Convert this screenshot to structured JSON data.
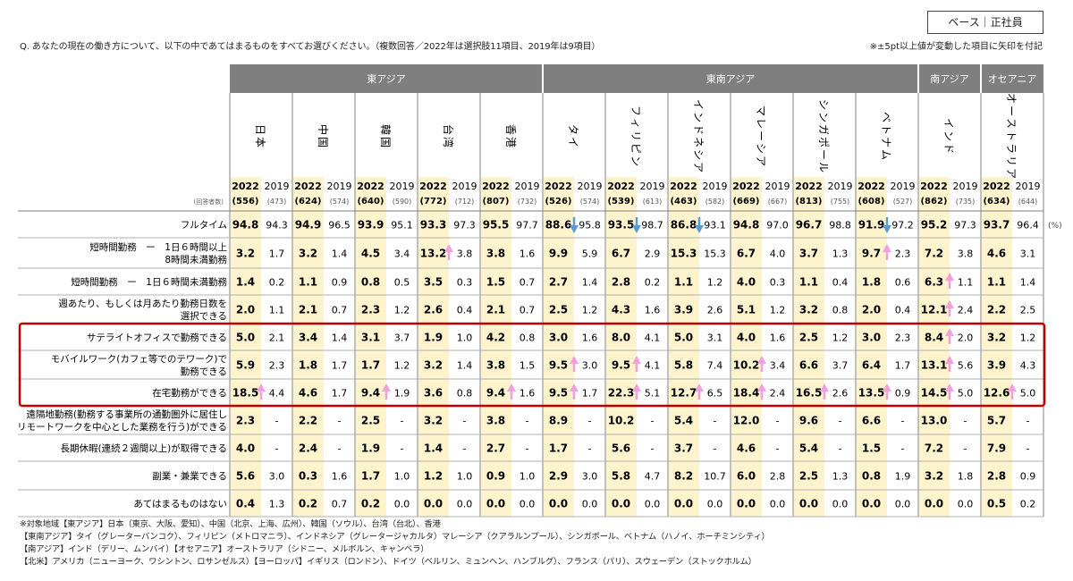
{
  "base_label": "ベース｜正社員",
  "question": "Q. あなたの現在の働き方について、以下の中であてはまるものをすべてお選びください。（複数回答／2022年は選択肢11項目、2019年は9項目）",
  "note": "※±5pt以上値が変動した項目に矢印を付記",
  "respondents_label": "(回答者数)",
  "unit_label": "(%)",
  "footnotes": [
    "※対象地域【東アジア】日本（東京、大阪、愛知）、中国（北京、上海、広州）、韓国（ソウル）、台湾（台北）、香港",
    "【東南アジア】タイ（グレーターバンコク）、フィリピン（メトロマニラ）、インドネシア（グレータージャカルタ）マレーシア（クアラルンプール）、シンガポール、ベトナム（ハノイ、ホーチミンシティ）",
    "【南アジア】インド（デリー、ムンバイ）【オセアニア】オーストラリア（シドニー、メルボルン、キャンベラ）",
    "【北米】アメリカ（ニューヨーク、ワシントン、ロサンゼルス）【ヨーロッパ】イギリス（ロンドン）、ドイツ（ベルリン、ミュンヘン、ハンブルグ）、フランス（パリ）、スウェーデン（ストックホルム）"
  ],
  "chart_data": {
    "type": "table",
    "colors": {
      "header_bg": "#7f7f7f",
      "header_text": "#ffffff",
      "highlight_2022": "#fdf3cc",
      "arrow_up": "#f0a0e0",
      "arrow_down": "#5b9bd5",
      "box": "#c00000"
    },
    "regions": [
      {
        "name": "東アジア",
        "countries": 5
      },
      {
        "name": "東南アジア",
        "countries": 6
      },
      {
        "name": "南アジア",
        "countries": 1
      },
      {
        "name": "オセアニア",
        "countries": 1
      }
    ],
    "years": [
      "2022",
      "2019"
    ],
    "countries": [
      {
        "name": "日本",
        "n2022": "(556)",
        "n2019": "(473)"
      },
      {
        "name": "中国",
        "n2022": "(624)",
        "n2019": "(574)"
      },
      {
        "name": "韓国",
        "n2022": "(640)",
        "n2019": "(590)"
      },
      {
        "name": "台湾",
        "n2022": "(772)",
        "n2019": "(712)"
      },
      {
        "name": "香港",
        "n2022": "(807)",
        "n2019": "(732)"
      },
      {
        "name": "タイ",
        "n2022": "(526)",
        "n2019": "(574)"
      },
      {
        "name": "フィリピン",
        "n2022": "(539)",
        "n2019": "(613)"
      },
      {
        "name": "インドネシア",
        "n2022": "(463)",
        "n2019": "(582)"
      },
      {
        "name": "マレーシア",
        "n2022": "(669)",
        "n2019": "(667)"
      },
      {
        "name": "シンガポール",
        "n2022": "(813)",
        "n2019": "(755)"
      },
      {
        "name": "ベトナム",
        "n2022": "(608)",
        "n2019": "(527)"
      },
      {
        "name": "インド",
        "n2022": "(862)",
        "n2019": "(735)"
      },
      {
        "name": "オーストラリア",
        "n2022": "(634)",
        "n2019": "(644)"
      }
    ],
    "rows": [
      {
        "label": [
          "フルタイム"
        ],
        "highlighted": false,
        "values": [
          [
            "94.8",
            "94.3"
          ],
          [
            "94.9",
            "96.5"
          ],
          [
            "93.9",
            "95.1"
          ],
          [
            "93.3",
            "97.3"
          ],
          [
            "95.5",
            "97.7"
          ],
          [
            "88.6",
            "95.8"
          ],
          [
            "93.5",
            "98.7"
          ],
          [
            "86.8",
            "93.1"
          ],
          [
            "94.8",
            "97.0"
          ],
          [
            "96.7",
            "98.8"
          ],
          [
            "91.9",
            "97.2"
          ],
          [
            "95.2",
            "97.3"
          ],
          [
            "93.7",
            "96.4"
          ]
        ],
        "arrows": [
          null,
          null,
          null,
          null,
          null,
          "down",
          "down",
          "down",
          null,
          null,
          "down",
          null,
          null
        ]
      },
      {
        "label": [
          "短時間勤務　ー　1日６時間以上",
          "8時間未満勤務"
        ],
        "highlighted": false,
        "values": [
          [
            "3.2",
            "1.7"
          ],
          [
            "3.2",
            "1.4"
          ],
          [
            "4.5",
            "3.4"
          ],
          [
            "13.2",
            "3.8"
          ],
          [
            "3.8",
            "1.6"
          ],
          [
            "9.9",
            "5.9"
          ],
          [
            "6.7",
            "2.9"
          ],
          [
            "15.3",
            "15.3"
          ],
          [
            "6.7",
            "4.0"
          ],
          [
            "3.7",
            "1.3"
          ],
          [
            "9.7",
            "2.3"
          ],
          [
            "7.2",
            "3.8"
          ],
          [
            "4.6",
            "3.1"
          ]
        ],
        "arrows": [
          null,
          null,
          null,
          "up",
          null,
          null,
          null,
          null,
          null,
          null,
          "up",
          null,
          null
        ]
      },
      {
        "label": [
          "短時間勤務　ー　1日６時間未満勤務"
        ],
        "highlighted": false,
        "values": [
          [
            "1.4",
            "0.2"
          ],
          [
            "1.1",
            "0.9"
          ],
          [
            "0.8",
            "0.5"
          ],
          [
            "3.5",
            "0.3"
          ],
          [
            "1.5",
            "0.7"
          ],
          [
            "2.7",
            "1.4"
          ],
          [
            "2.8",
            "0.2"
          ],
          [
            "1.1",
            "1.2"
          ],
          [
            "4.0",
            "0.3"
          ],
          [
            "1.1",
            "0.4"
          ],
          [
            "1.8",
            "0.6"
          ],
          [
            "6.3",
            "1.1"
          ],
          [
            "1.1",
            "1.4"
          ]
        ],
        "arrows": [
          null,
          null,
          null,
          null,
          null,
          null,
          null,
          null,
          null,
          null,
          null,
          "up",
          null
        ]
      },
      {
        "label": [
          "週あたり、もしくは月あたり勤務日数を",
          "選択できる"
        ],
        "highlighted": false,
        "values": [
          [
            "2.0",
            "1.1"
          ],
          [
            "2.1",
            "0.7"
          ],
          [
            "2.3",
            "1.2"
          ],
          [
            "2.6",
            "0.4"
          ],
          [
            "2.1",
            "0.7"
          ],
          [
            "2.5",
            "1.2"
          ],
          [
            "4.3",
            "1.6"
          ],
          [
            "3.9",
            "2.6"
          ],
          [
            "5.1",
            "1.2"
          ],
          [
            "3.2",
            "0.8"
          ],
          [
            "2.0",
            "0.4"
          ],
          [
            "12.1",
            "2.4"
          ],
          [
            "2.2",
            "2.5"
          ]
        ],
        "arrows": [
          null,
          null,
          null,
          null,
          null,
          null,
          null,
          null,
          null,
          null,
          null,
          "up",
          null
        ]
      },
      {
        "label": [
          "サテライトオフィスで勤務できる"
        ],
        "highlighted": true,
        "values": [
          [
            "5.0",
            "2.1"
          ],
          [
            "3.4",
            "1.4"
          ],
          [
            "3.1",
            "3.7"
          ],
          [
            "1.9",
            "1.0"
          ],
          [
            "4.2",
            "0.8"
          ],
          [
            "3.0",
            "1.6"
          ],
          [
            "8.0",
            "4.1"
          ],
          [
            "5.0",
            "3.1"
          ],
          [
            "4.0",
            "1.6"
          ],
          [
            "2.5",
            "1.2"
          ],
          [
            "3.0",
            "2.3"
          ],
          [
            "8.4",
            "2.0"
          ],
          [
            "3.2",
            "1.2"
          ]
        ],
        "arrows": [
          null,
          null,
          null,
          null,
          null,
          null,
          null,
          null,
          null,
          null,
          null,
          "up",
          null
        ]
      },
      {
        "label": [
          "モバイルワーク(カフェ等でのテワーク)で",
          "勤務できる"
        ],
        "highlighted": true,
        "values": [
          [
            "5.9",
            "2.3"
          ],
          [
            "1.8",
            "1.7"
          ],
          [
            "1.7",
            "1.2"
          ],
          [
            "3.2",
            "1.4"
          ],
          [
            "3.8",
            "1.5"
          ],
          [
            "9.5",
            "3.0"
          ],
          [
            "9.5",
            "4.1"
          ],
          [
            "5.8",
            "7.4"
          ],
          [
            "10.2",
            "3.4"
          ],
          [
            "6.6",
            "3.7"
          ],
          [
            "6.4",
            "1.7"
          ],
          [
            "13.1",
            "5.6"
          ],
          [
            "3.9",
            "4.3"
          ]
        ],
        "arrows": [
          null,
          null,
          null,
          null,
          null,
          "up",
          "up",
          null,
          "up",
          null,
          null,
          "up",
          null
        ]
      },
      {
        "label": [
          "在宅勤務ができる"
        ],
        "highlighted": true,
        "values": [
          [
            "18.5",
            "4.4"
          ],
          [
            "4.6",
            "1.7"
          ],
          [
            "9.4",
            "1.9"
          ],
          [
            "3.6",
            "0.8"
          ],
          [
            "9.4",
            "1.6"
          ],
          [
            "9.5",
            "1.7"
          ],
          [
            "22.3",
            "5.1"
          ],
          [
            "12.7",
            "6.5"
          ],
          [
            "18.4",
            "2.4"
          ],
          [
            "16.5",
            "2.6"
          ],
          [
            "13.5",
            "0.9"
          ],
          [
            "14.5",
            "5.0"
          ],
          [
            "12.6",
            "5.0"
          ]
        ],
        "arrows": [
          "up",
          null,
          "up",
          null,
          "up",
          "up",
          "up",
          "up",
          "up",
          "up",
          "up",
          "up",
          "up"
        ]
      },
      {
        "label": [
          "遠隔地勤務(勤務する事業所の通勤圏外に居住し",
          "リモートワークを中心とした業務を行う)ができる"
        ],
        "highlighted": false,
        "values": [
          [
            "2.3",
            "-"
          ],
          [
            "2.2",
            "-"
          ],
          [
            "2.5",
            "-"
          ],
          [
            "3.2",
            "-"
          ],
          [
            "3.8",
            "-"
          ],
          [
            "8.9",
            "-"
          ],
          [
            "10.2",
            "-"
          ],
          [
            "5.4",
            "-"
          ],
          [
            "12.0",
            "-"
          ],
          [
            "9.6",
            "-"
          ],
          [
            "6.6",
            "-"
          ],
          [
            "13.0",
            "-"
          ],
          [
            "5.7",
            "-"
          ]
        ],
        "arrows": [
          null,
          null,
          null,
          null,
          null,
          null,
          null,
          null,
          null,
          null,
          null,
          null,
          null
        ]
      },
      {
        "label": [
          "長期休暇(連続２週間以上)が取得できる"
        ],
        "highlighted": false,
        "values": [
          [
            "4.0",
            "-"
          ],
          [
            "2.4",
            "-"
          ],
          [
            "1.9",
            "-"
          ],
          [
            "1.4",
            "-"
          ],
          [
            "2.7",
            "-"
          ],
          [
            "1.7",
            "-"
          ],
          [
            "5.6",
            "-"
          ],
          [
            "3.7",
            "-"
          ],
          [
            "4.6",
            "-"
          ],
          [
            "5.4",
            "-"
          ],
          [
            "1.5",
            "-"
          ],
          [
            "7.2",
            "-"
          ],
          [
            "7.9",
            "-"
          ]
        ],
        "arrows": [
          null,
          null,
          null,
          null,
          null,
          null,
          null,
          null,
          null,
          null,
          null,
          null,
          null
        ]
      },
      {
        "label": [
          "副業・兼業できる"
        ],
        "highlighted": false,
        "values": [
          [
            "5.6",
            "3.0"
          ],
          [
            "0.3",
            "1.6"
          ],
          [
            "1.7",
            "1.0"
          ],
          [
            "1.2",
            "1.0"
          ],
          [
            "0.9",
            "1.0"
          ],
          [
            "2.9",
            "3.0"
          ],
          [
            "5.8",
            "4.7"
          ],
          [
            "8.2",
            "10.7"
          ],
          [
            "6.0",
            "2.8"
          ],
          [
            "2.5",
            "1.3"
          ],
          [
            "0.8",
            "1.9"
          ],
          [
            "3.2",
            "1.8"
          ],
          [
            "2.8",
            "0.9"
          ]
        ],
        "arrows": [
          null,
          null,
          null,
          null,
          null,
          null,
          null,
          null,
          null,
          null,
          null,
          null,
          null
        ]
      },
      {
        "label": [
          "あてはまるものはない"
        ],
        "highlighted": false,
        "values": [
          [
            "0.4",
            "1.3"
          ],
          [
            "0.2",
            "0.7"
          ],
          [
            "0.2",
            "0.0"
          ],
          [
            "0.0",
            "0.0"
          ],
          [
            "0.0",
            "0.0"
          ],
          [
            "0.0",
            "0.0"
          ],
          [
            "0.0",
            "0.0"
          ],
          [
            "0.0",
            "0.0"
          ],
          [
            "0.0",
            "0.0"
          ],
          [
            "0.0",
            "0.0"
          ],
          [
            "0.0",
            "0.0"
          ],
          [
            "0.0",
            "0.0"
          ],
          [
            "0.5",
            "0.2"
          ]
        ],
        "arrows": [
          null,
          null,
          null,
          null,
          null,
          null,
          null,
          null,
          null,
          null,
          null,
          null,
          null
        ]
      }
    ]
  }
}
